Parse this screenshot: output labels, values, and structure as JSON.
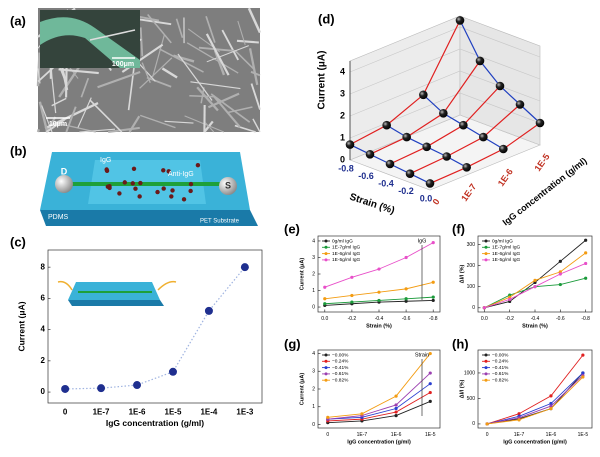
{
  "panels": {
    "a": {
      "label": "(a)",
      "inset_scale": "100μm",
      "main_scale": "10μm"
    },
    "b": {
      "label": "(b)",
      "igg": "IgG",
      "anti_igg": "Anti-IgG",
      "drain": "D",
      "source": "S",
      "pdms": "PDMS",
      "substrate": "PET Substrate"
    }
  },
  "chart_data": [
    {
      "type": "line",
      "label": "(c)",
      "xlabel": "IgG concentration (g/ml)",
      "ylabel": "Current (μA)",
      "categories": [
        "0",
        "1E-7",
        "1E-6",
        "1E-5",
        "1E-4",
        "1E-3"
      ],
      "values": [
        0.2,
        0.25,
        0.45,
        1.3,
        5.2,
        8.0
      ],
      "color": "#1f2f8f",
      "line_color": "#9fb3e0",
      "line_style": "dotted",
      "ylim": [
        -0.7,
        9.1
      ],
      "yticks": [
        0,
        2,
        4,
        6,
        8
      ]
    },
    {
      "type": "scatter3d",
      "label": "(d)",
      "xlabel": "Strain (%)",
      "ylabel": "IgG concentration (g/ml)",
      "zlabel": "Current (μA)",
      "x": [
        0,
        -0.2,
        -0.4,
        -0.6,
        -0.8
      ],
      "xlim": [
        -0.8,
        0
      ],
      "xticks": [
        -0.8,
        -0.6,
        -0.4,
        -0.2,
        {
          "value": 0,
          "label": "0.0"
        }
      ],
      "categories": [
        "0",
        "1E-7",
        "1E-6",
        "1E-5"
      ],
      "values": [
        [
          0.3,
          0.4,
          0.5,
          0.6,
          0.7
        ],
        [
          0.35,
          0.5,
          0.6,
          0.7,
          0.9
        ],
        [
          0.5,
          0.7,
          0.9,
          1.1,
          1.6
        ],
        [
          1.0,
          1.5,
          2.0,
          2.8,
          4.3
        ]
      ],
      "zlim": [
        0,
        4.5
      ],
      "zticks": [
        0,
        1,
        2,
        3,
        4
      ],
      "strain_line_color": "#2040c0",
      "conc_line_color": "#e02020"
    },
    {
      "type": "line",
      "label": "(e)",
      "xlabel": "Strain (%)",
      "ylabel": "Current (μA)",
      "annotation": "IgG",
      "legend": "upper left",
      "x": [
        0,
        -0.2,
        -0.4,
        -0.6,
        -0.8
      ],
      "xlim": [
        0.05,
        -0.85
      ],
      "xticks": [
        {
          "value": 0,
          "label": "0.0"
        },
        -0.2,
        -0.4,
        -0.6,
        -0.8
      ],
      "ylim": [
        -0.3,
        4.3
      ],
      "yticks": [
        0,
        1,
        2,
        3,
        4
      ],
      "series": [
        {
          "name": "0g/ml IgG",
          "color": "#222222",
          "values": [
            0.1,
            0.2,
            0.3,
            0.35,
            0.4
          ]
        },
        {
          "name": "1E-7g/ml IgG",
          "color": "#1a9a3a",
          "values": [
            0.2,
            0.3,
            0.4,
            0.5,
            0.6
          ]
        },
        {
          "name": "1E-6g/ml IgG",
          "color": "#f39c12",
          "values": [
            0.5,
            0.7,
            0.9,
            1.1,
            1.5
          ]
        },
        {
          "name": "1E-5g/ml IgG",
          "color": "#e84fc9",
          "values": [
            1.2,
            1.8,
            2.3,
            3.0,
            3.9
          ]
        }
      ]
    },
    {
      "type": "line",
      "label": "(f)",
      "xlabel": "Strain (%)",
      "ylabel": "ΔI/I (%)",
      "legend": "upper left",
      "x": [
        0,
        -0.2,
        -0.4,
        -0.6,
        -0.8
      ],
      "xlim": [
        0.05,
        -0.85
      ],
      "xticks": [
        {
          "value": 0,
          "label": "0.0"
        },
        -0.2,
        -0.4,
        -0.6,
        -0.8
      ],
      "ylim": [
        -20,
        340
      ],
      "yticks": [
        0,
        100,
        200,
        300
      ],
      "series": [
        {
          "name": "0g/ml IgG",
          "color": "#222222",
          "values": [
            0,
            30,
            120,
            220,
            320
          ]
        },
        {
          "name": "1E-7g/ml IgG",
          "color": "#1a9a3a",
          "values": [
            0,
            60,
            100,
            110,
            140
          ]
        },
        {
          "name": "1E-6g/ml IgG",
          "color": "#f39c12",
          "values": [
            0,
            50,
            130,
            170,
            260
          ]
        },
        {
          "name": "1E-5g/ml IgG",
          "color": "#e84fc9",
          "values": [
            0,
            40,
            100,
            160,
            210
          ]
        }
      ]
    },
    {
      "type": "line",
      "label": "(g)",
      "xlabel": "IgG concentration (g/ml)",
      "ylabel": "Current (μA)",
      "annotation": "Strain",
      "legend": "upper left",
      "categories": [
        "0",
        "1E-7",
        "1E-6",
        "1E-5"
      ],
      "ylim": [
        -0.2,
        4.2
      ],
      "yticks": [
        0,
        1,
        2,
        3,
        4
      ],
      "series": [
        {
          "name": "−0.00%",
          "color": "#222222",
          "values": [
            0.1,
            0.2,
            0.5,
            1.3
          ]
        },
        {
          "name": "−0.24%",
          "color": "#e02020",
          "values": [
            0.2,
            0.3,
            0.7,
            1.8
          ]
        },
        {
          "name": "−0.41%",
          "color": "#2a3fd0",
          "values": [
            0.3,
            0.4,
            0.9,
            2.3
          ]
        },
        {
          "name": "−0.61%",
          "color": "#9b3fb0",
          "values": [
            0.3,
            0.5,
            1.1,
            2.9
          ]
        },
        {
          "name": "−0.82%",
          "color": "#f39c12",
          "values": [
            0.4,
            0.6,
            1.6,
            4.0
          ]
        }
      ]
    },
    {
      "type": "line",
      "label": "(h)",
      "xlabel": "IgG concentration (g/ml)",
      "ylabel": "ΔI/I (%)",
      "legend": "upper left",
      "categories": [
        "0",
        "1E-7",
        "1E-6",
        "1E-5"
      ],
      "ylim": [
        -80,
        1450
      ],
      "yticks": [
        0,
        500,
        1000
      ],
      "series": [
        {
          "name": "−0.00%",
          "color": "#222222",
          "values": [
            0,
            100,
            300,
            1000
          ]
        },
        {
          "name": "−0.24%",
          "color": "#e02020",
          "values": [
            0,
            200,
            550,
            1350
          ]
        },
        {
          "name": "−0.41%",
          "color": "#2a3fd0",
          "values": [
            0,
            150,
            400,
            1000
          ]
        },
        {
          "name": "−0.61%",
          "color": "#9b3fb0",
          "values": [
            0,
            120,
            350,
            950
          ]
        },
        {
          "name": "−0.82%",
          "color": "#f39c12",
          "values": [
            0,
            80,
            300,
            920
          ]
        }
      ]
    }
  ]
}
